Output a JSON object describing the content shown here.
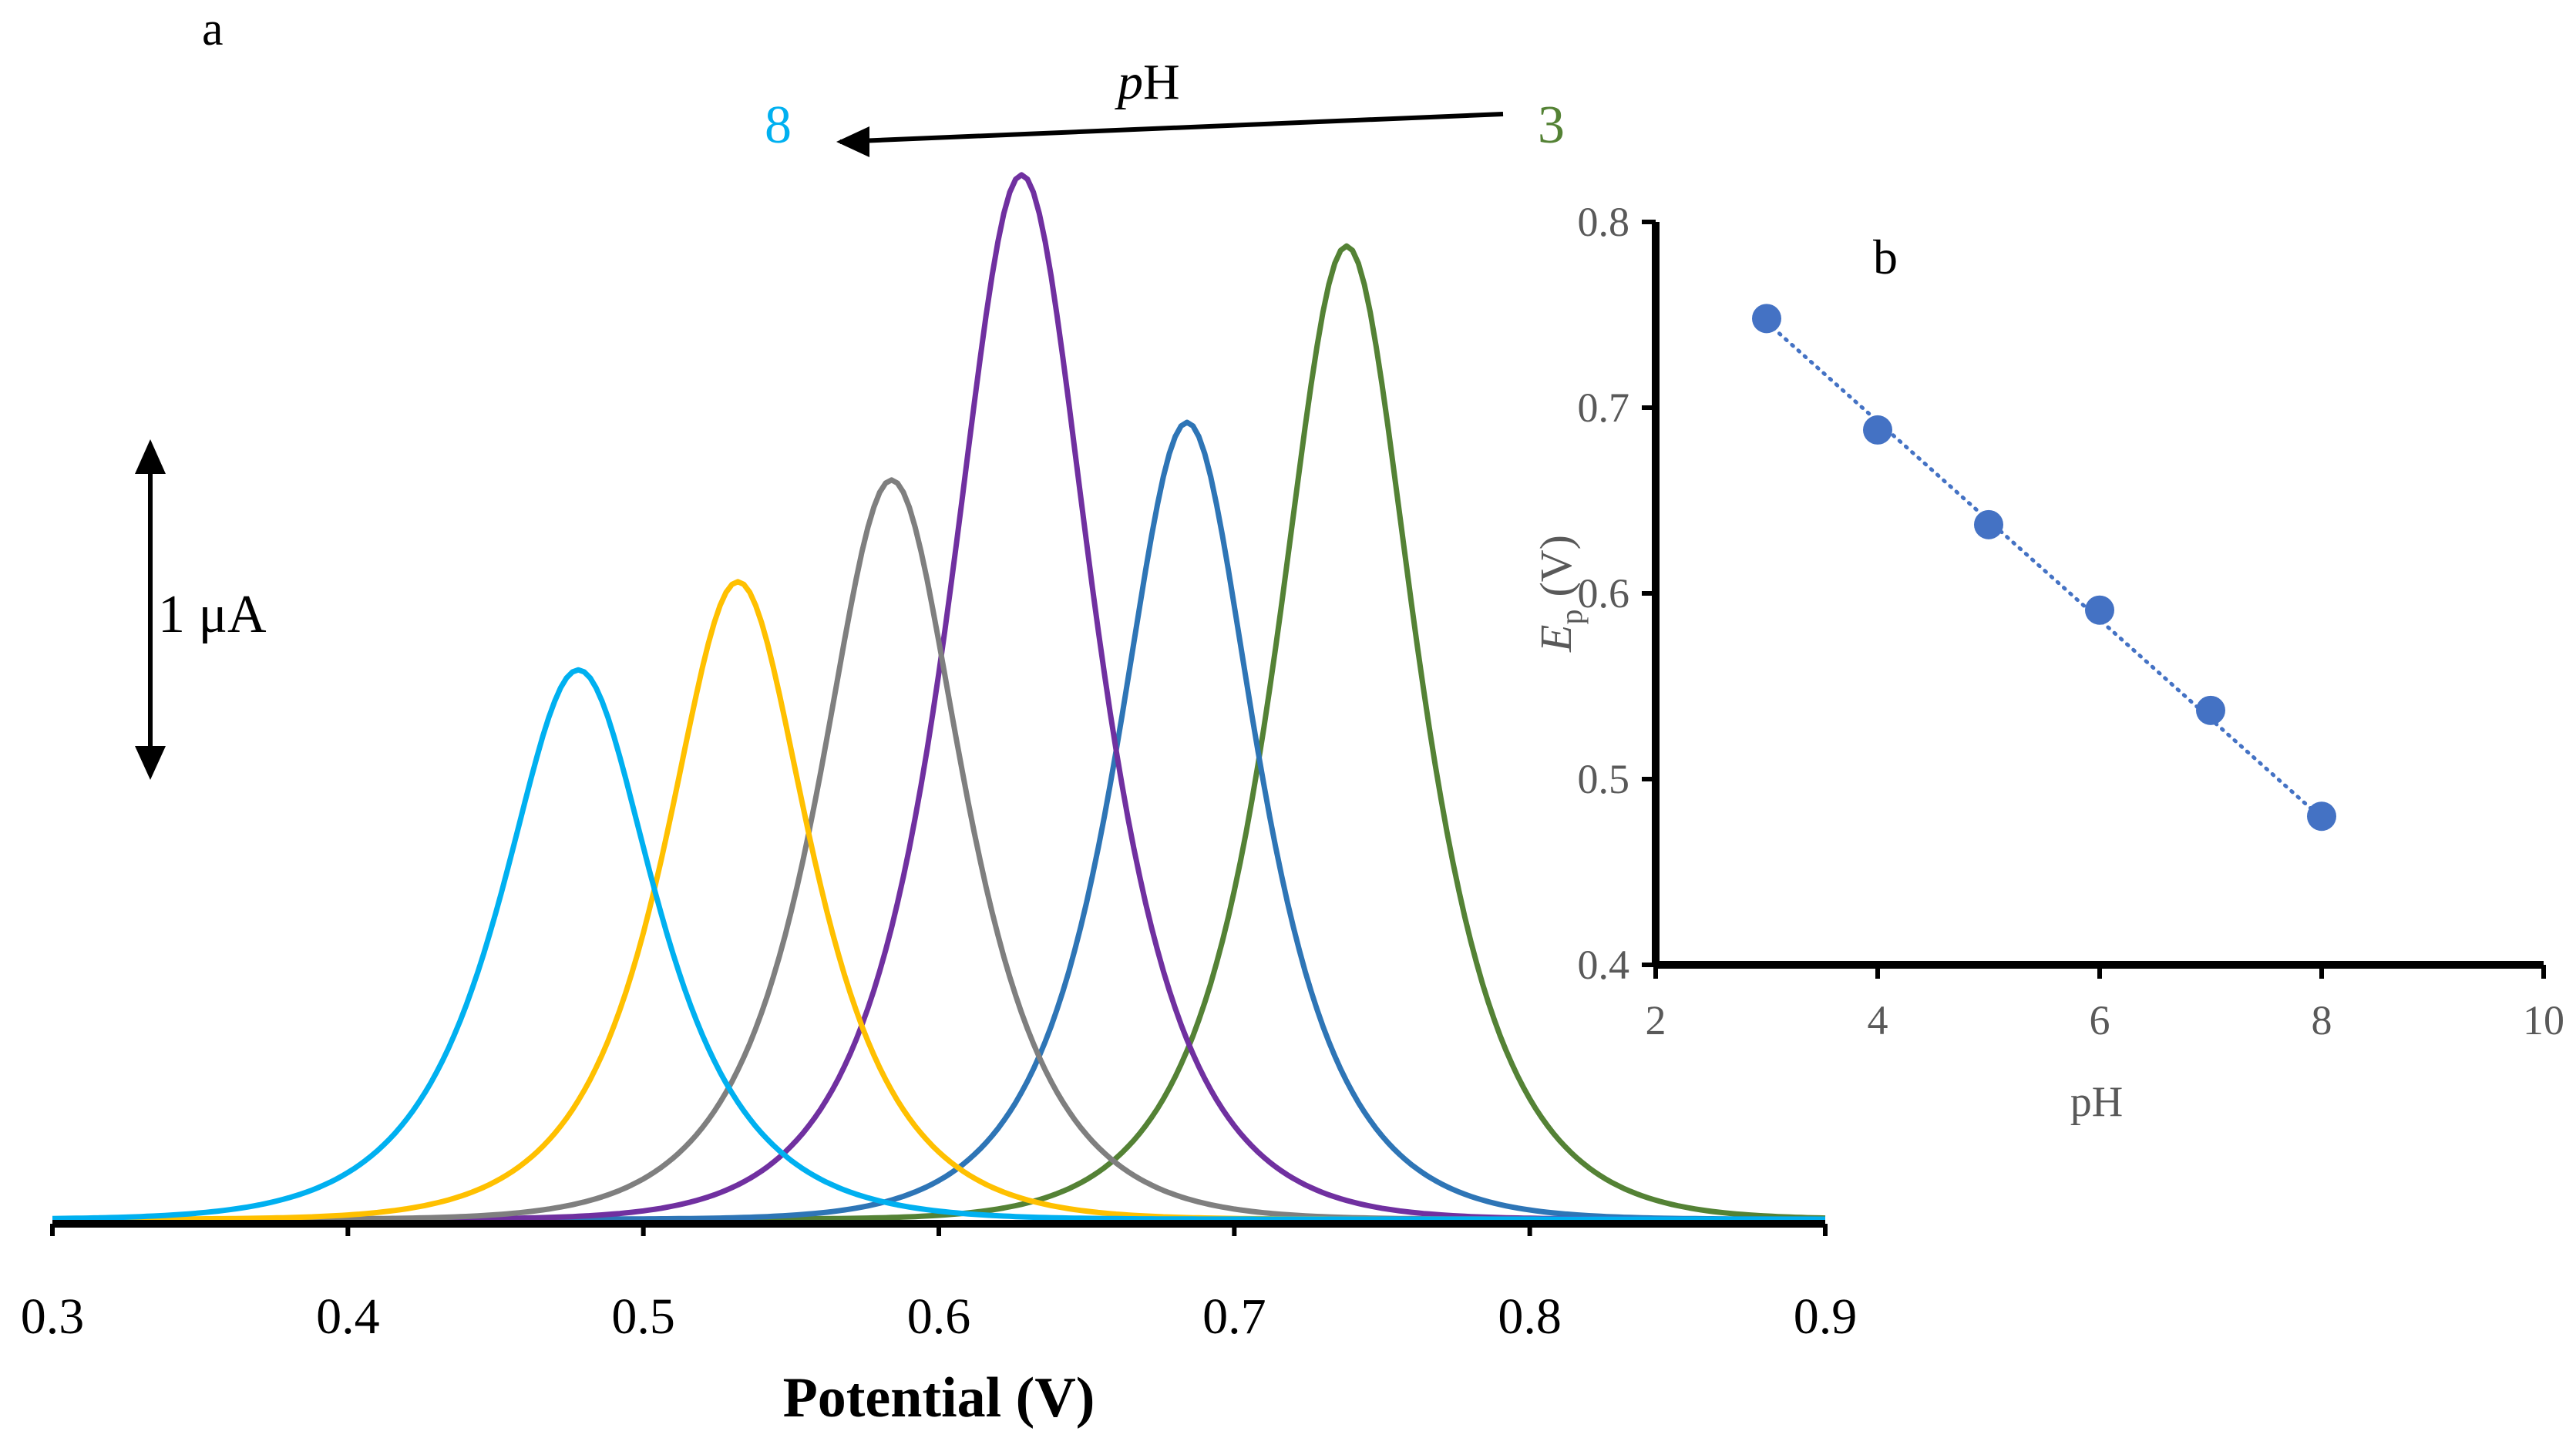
{
  "chart_data": [
    {
      "type": "line",
      "panel_label": "a",
      "xlabel": "Potential (V)",
      "ylabel": "",
      "xlim": [
        0.3,
        0.9
      ],
      "x_ticks": [
        "0.3",
        "0.4",
        "0.5",
        "0.6",
        "0.7",
        "0.8",
        "0.9"
      ],
      "scale_bar_label": "1 μA",
      "scale_bar_value_uA": 1,
      "ph_arrow": {
        "label_prefix": "p",
        "label_suffix": "H",
        "from_label": "3",
        "to_label": "8"
      },
      "series": [
        {
          "name": "pH 3",
          "color": "#548235",
          "peak_potential": 0.738,
          "peak_current_uA": 2.87,
          "width": 0.03
        },
        {
          "name": "pH 4",
          "color": "#2e75b6",
          "peak_potential": 0.684,
          "peak_current_uA": 2.35,
          "width": 0.03
        },
        {
          "name": "pH 5",
          "color": "#7030a0",
          "peak_potential": 0.628,
          "peak_current_uA": 3.08,
          "width": 0.031
        },
        {
          "name": "pH 6",
          "color": "#7f7f7f",
          "peak_potential": 0.584,
          "peak_current_uA": 2.18,
          "width": 0.031
        },
        {
          "name": "pH 7",
          "color": "#ffc000",
          "peak_potential": 0.532,
          "peak_current_uA": 1.88,
          "width": 0.031
        },
        {
          "name": "pH 8",
          "color": "#00b0f0",
          "peak_potential": 0.478,
          "peak_current_uA": 1.62,
          "width": 0.033
        }
      ]
    },
    {
      "type": "scatter",
      "panel_label": "b",
      "xlabel": "pH",
      "ylabel_main": "E",
      "ylabel_sub": "p",
      "ylabel_unit": "(V)",
      "xlim": [
        2,
        10
      ],
      "ylim": [
        0.4,
        0.8
      ],
      "x_ticks": [
        "2",
        "4",
        "6",
        "8",
        "10"
      ],
      "y_ticks": [
        "0.4",
        "0.5",
        "0.6",
        "0.7",
        "0.8"
      ],
      "x": [
        3,
        4,
        5,
        6,
        7,
        8
      ],
      "y": [
        0.748,
        0.688,
        0.637,
        0.591,
        0.537,
        0.48
      ],
      "trendline": {
        "x": [
          3,
          8
        ],
        "y": [
          0.746,
          0.479
        ]
      },
      "marker_color": "#4472c4"
    }
  ]
}
